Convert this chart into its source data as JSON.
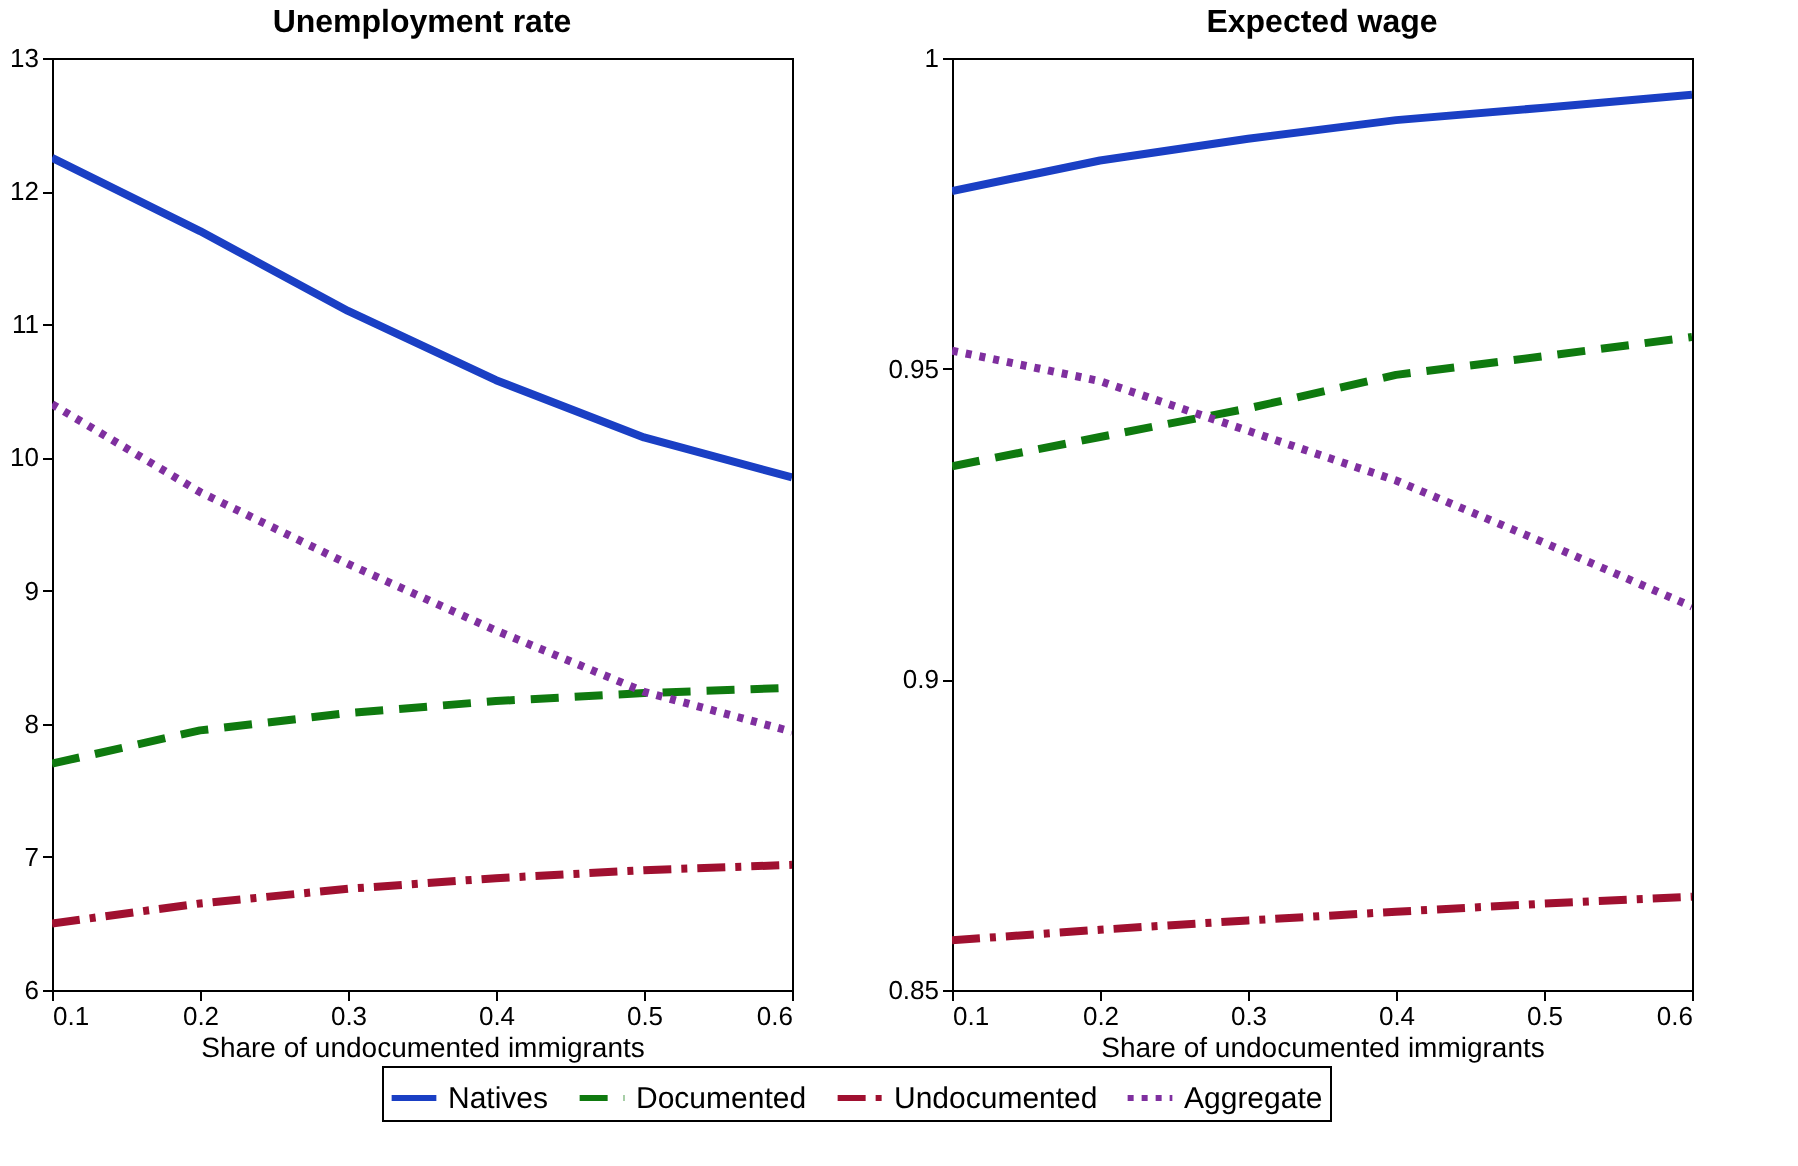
{
  "chart_data": [
    {
      "type": "line",
      "title": "Unemployment rate",
      "xlabel": "Share of undocumented immigrants",
      "x": [
        0.1,
        0.2,
        0.3,
        0.4,
        0.5,
        0.6
      ],
      "xlim": [
        0.1,
        0.6
      ],
      "xticks": [
        0.1,
        0.2,
        0.3,
        0.4,
        0.5,
        0.6
      ],
      "ylim": [
        6,
        13
      ],
      "yticks": [
        6,
        7,
        8,
        9,
        10,
        11,
        12,
        13
      ],
      "legend": "bottom",
      "series": [
        {
          "name": "Natives",
          "color": "#1a3fc4",
          "line_style": "solid",
          "values": [
            12.25,
            11.7,
            11.1,
            10.58,
            10.15,
            9.85
          ]
        },
        {
          "name": "Documented",
          "color": "#0f7a0f",
          "line_style": "dashed",
          "values": [
            7.7,
            7.95,
            8.08,
            8.17,
            8.23,
            8.27
          ]
        },
        {
          "name": "Undocumented",
          "color": "#a01030",
          "line_style": "dashdot",
          "values": [
            6.5,
            6.65,
            6.76,
            6.84,
            6.9,
            6.94
          ]
        },
        {
          "name": "Aggregate",
          "color": "#7f2f9f",
          "line_style": "dotted",
          "values": [
            10.4,
            9.74,
            9.2,
            8.7,
            8.24,
            7.94
          ]
        }
      ]
    },
    {
      "type": "line",
      "title": "Expected wage",
      "xlabel": "Share of undocumented immigrants",
      "x": [
        0.1,
        0.2,
        0.3,
        0.4,
        0.5,
        0.6
      ],
      "xlim": [
        0.1,
        0.6
      ],
      "xticks": [
        0.1,
        0.2,
        0.3,
        0.4,
        0.5,
        0.6
      ],
      "ylim": [
        0.85,
        1
      ],
      "yticks": [
        0.85,
        0.9,
        0.95,
        1
      ],
      "series": [
        {
          "color": "#1a3fc4",
          "line_style": "solid",
          "values": [
            0.9786,
            0.9835,
            0.987,
            0.99,
            0.992,
            0.9941
          ]
        },
        {
          "color": "#0f7a0f",
          "line_style": "dashed",
          "values": [
            0.9343,
            0.939,
            0.9436,
            0.949,
            0.952,
            0.9551
          ]
        },
        {
          "color": "#a01030",
          "line_style": "dashdot",
          "values": [
            0.858,
            0.8597,
            0.8612,
            0.8626,
            0.8639,
            0.865
          ]
        },
        {
          "color": "#7f2f9f",
          "line_style": "dotted",
          "values": [
            0.9529,
            0.948,
            0.94,
            0.932,
            0.922,
            0.9117
          ]
        }
      ]
    }
  ]
}
